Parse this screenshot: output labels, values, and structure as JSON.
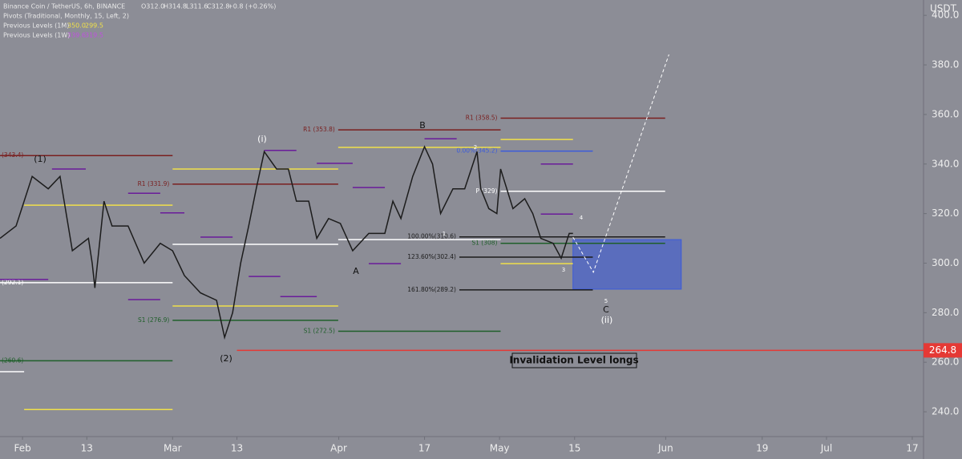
{
  "chart_data": {
    "type": "line",
    "header": {
      "symbol": "Binance Coin / TetherUS, 6h, BINANCE",
      "open": "O312.0",
      "high": "H314.8",
      "low": "L311.6",
      "close": "C312.8",
      "change": "+0.8 (+0.26%)",
      "pivots": "Pivots (Traditional, Monthly, 15, Left, 2)",
      "prev_1m": {
        "label": "Previous Levels (1M)",
        "high": "350.0",
        "low": "299.5"
      },
      "prev_1w": {
        "label": "Previous Levels (1W)",
        "high": "339.6",
        "low": "319.5"
      }
    },
    "axis_unit": "USDT",
    "color": "#1c1c1c",
    "x": [
      27.8,
      30.8,
      33.8,
      36.8,
      39.0,
      41.3,
      44.3,
      45.0,
      45.5,
      47.2,
      48.7,
      51.7,
      54.7,
      57.7,
      60.0,
      62.2,
      65.2,
      68.2,
      69.7,
      71.2,
      72.7,
      74.2,
      75.6,
      77.1,
      79.4,
      81.6,
      83.1,
      85.4,
      86.9,
      89.1,
      91.3,
      93.6,
      96.6,
      99.6,
      101.1,
      102.6,
      104.8,
      107.0,
      108.5,
      110.0,
      112.3,
      114.5,
      116.8,
      117.5,
      119.0,
      120.5,
      121.2,
      123.5,
      125.7,
      127.2,
      128.7,
      131.0,
      132.5,
      134.0,
      134.7
    ],
    "values": [
      310,
      315,
      335,
      330,
      335,
      305,
      310,
      300,
      290,
      325,
      315,
      315,
      300,
      308,
      305,
      295,
      288,
      285,
      270,
      280,
      300,
      315,
      330,
      345,
      338,
      338,
      325,
      325,
      310,
      318,
      316,
      305,
      312,
      312,
      325,
      318,
      335,
      347,
      340,
      320,
      330,
      330,
      345,
      330,
      322,
      320,
      338,
      322,
      326,
      320,
      310,
      308,
      302,
      312,
      312
    ],
    "xlim": [
      27.8,
      200.1
    ],
    "ylim": [
      230,
      406.2
    ],
    "xticks": [
      {
        "value": 32,
        "label": "Feb"
      },
      {
        "value": 44,
        "label": "13"
      },
      {
        "value": 60,
        "label": "Mar"
      },
      {
        "value": 72,
        "label": "13"
      },
      {
        "value": 91,
        "label": "Apr"
      },
      {
        "value": 107,
        "label": "17"
      },
      {
        "value": 121,
        "label": "May"
      },
      {
        "value": 135,
        "label": "15"
      },
      {
        "value": 152,
        "label": "Jun"
      },
      {
        "value": 170,
        "label": "19"
      },
      {
        "value": 182,
        "label": "Jul"
      },
      {
        "value": 198,
        "label": "17"
      }
    ],
    "yticks": [
      {
        "value": 240,
        "label": "240.0"
      },
      {
        "value": 260,
        "label": "260.0"
      },
      {
        "value": 280,
        "label": "280.0"
      },
      {
        "value": 300,
        "label": "300.0"
      },
      {
        "value": 320,
        "label": "320.0"
      },
      {
        "value": 340,
        "label": "340.0"
      },
      {
        "value": 360,
        "label": "360.0"
      },
      {
        "value": 380,
        "label": "380.0"
      },
      {
        "value": 400,
        "label": "400.0"
      }
    ],
    "levels": [
      {
        "label": "(343.4)",
        "value": 343.4,
        "x": [
          27.8,
          60.0
        ],
        "color": "#7a1f1f"
      },
      {
        "label": "R1 (331.9)",
        "value": 331.9,
        "x": [
          60.0,
          90.9
        ],
        "color": "#7a1f1f"
      },
      {
        "label": "R1 (353.8)",
        "value": 353.8,
        "x": [
          90.9,
          121.2
        ],
        "color": "#7a1f1f"
      },
      {
        "label": "R1 (358.5)",
        "value": 358.5,
        "x": [
          121.2,
          151.9
        ],
        "color": "#7a1f1f"
      },
      {
        "label": "(292.1)",
        "value": 292.1,
        "x": [
          27.8,
          60.0
        ],
        "color": "#ffffff"
      },
      {
        "label": "(260.6)",
        "value": 260.6,
        "x": [
          27.8,
          60.0
        ],
        "color": "#1f5f2a"
      },
      {
        "label": "S1 (276.9)",
        "value": 276.9,
        "x": [
          60.0,
          90.9
        ],
        "color": "#1f5f2a"
      },
      {
        "label": "S1 (272.5)",
        "value": 272.5,
        "x": [
          90.9,
          121.2
        ],
        "color": "#1f5f2a"
      },
      {
        "label": "P (329)",
        "value": 329,
        "x": [
          121.2,
          151.9
        ],
        "color": "#ffffff"
      },
      {
        "label": "S1 (308)",
        "value": 308,
        "x": [
          121.2,
          151.9
        ],
        "color": "#1f5f2a"
      },
      {
        "label": "0.00%(345.2)",
        "value": 345.2,
        "x": [
          121.2,
          138.4
        ],
        "color": "#3b5bdb"
      },
      {
        "label": "100.00%(310.6)",
        "value": 310.6,
        "x": [
          113.5,
          151.9
        ],
        "color": "#1c1c1c"
      },
      {
        "label": "123.60%(302.4)",
        "value": 302.4,
        "x": [
          113.5,
          138.4
        ],
        "color": "#1c1c1c"
      },
      {
        "label": "161.80%(289.2)",
        "value": 289.2,
        "x": [
          113.5,
          138.4
        ],
        "color": "#1c1c1c"
      },
      {
        "value": 307.6,
        "x": [
          60.0,
          90.9
        ],
        "color": "#ffffff"
      },
      {
        "value": 309.5,
        "x": [
          90.9,
          121.2
        ],
        "color": "#ffffff"
      },
      {
        "value": 256.2,
        "x": [
          27.8,
          32.3
        ],
        "color": "#ffffff"
      },
      {
        "value": 323.4,
        "x": [
          32.3,
          60.0
        ],
        "color": "#f0e04a"
      },
      {
        "value": 338,
        "x": [
          60.0,
          90.9
        ],
        "color": "#f0e04a"
      },
      {
        "value": 346.7,
        "x": [
          90.9,
          121.2
        ],
        "color": "#f0e04a"
      },
      {
        "value": 349.9,
        "x": [
          121.2,
          134.7
        ],
        "color": "#f0e04a"
      },
      {
        "value": 282.7,
        "x": [
          60.0,
          90.9
        ],
        "color": "#f0e04a"
      },
      {
        "value": 299.8,
        "x": [
          121.2,
          134.7
        ],
        "color": "#f0e04a"
      },
      {
        "value": 240.9,
        "x": [
          32.3,
          60.0
        ],
        "color": "#f0e04a"
      },
      {
        "value": 338,
        "x": [
          37.5,
          43.8
        ],
        "color": "#6a1b9a"
      },
      {
        "value": 293.4,
        "x": [
          27.8,
          36.8
        ],
        "color": "#6a1b9a"
      },
      {
        "value": 328.2,
        "x": [
          51.7,
          57.7
        ],
        "color": "#6a1b9a"
      },
      {
        "value": 310.5,
        "x": [
          65.2,
          71.2
        ],
        "color": "#6a1b9a"
      },
      {
        "value": 320.3,
        "x": [
          57.7,
          62.2
        ],
        "color": "#6a1b9a"
      },
      {
        "value": 285.3,
        "x": [
          51.7,
          57.7
        ],
        "color": "#6a1b9a"
      },
      {
        "value": 345.5,
        "x": [
          77.1,
          83.1
        ],
        "color": "#6a1b9a"
      },
      {
        "value": 340.3,
        "x": [
          86.9,
          93.6
        ],
        "color": "#6a1b9a"
      },
      {
        "value": 294.6,
        "x": [
          74.2,
          80.1
        ],
        "color": "#6a1b9a"
      },
      {
        "value": 286.5,
        "x": [
          80.1,
          86.9
        ],
        "color": "#6a1b9a"
      },
      {
        "value": 330.5,
        "x": [
          93.6,
          99.6
        ],
        "color": "#6a1b9a"
      },
      {
        "value": 299.8,
        "x": [
          96.6,
          102.6
        ],
        "color": "#6a1b9a"
      },
      {
        "value": 350.2,
        "x": [
          107.0,
          113.0
        ],
        "color": "#6a1b9a"
      },
      {
        "value": 340.0,
        "x": [
          128.7,
          134.7
        ],
        "color": "#6a1b9a"
      },
      {
        "value": 319.8,
        "x": [
          128.7,
          134.7
        ],
        "color": "#6a1b9a"
      }
    ],
    "zone": {
      "x": [
        134.7,
        154.9
      ],
      "y": [
        289.5,
        309.5
      ],
      "color": "#4a63c9"
    },
    "projection": {
      "x": [
        134.7,
        138.5,
        152.6
      ],
      "values": [
        310.5,
        296.3,
        384.2
      ]
    },
    "invalidation": {
      "value": 264.8,
      "x": [
        72.0,
        200.1
      ],
      "label": "Invalidation Level longs",
      "tag": "264.8",
      "color": "#e53935"
    },
    "annotations": [
      "(1)",
      "(2)",
      "(i)",
      "(ii)",
      "A",
      "B",
      "C",
      "1",
      "2",
      "3",
      "4",
      "5"
    ]
  }
}
